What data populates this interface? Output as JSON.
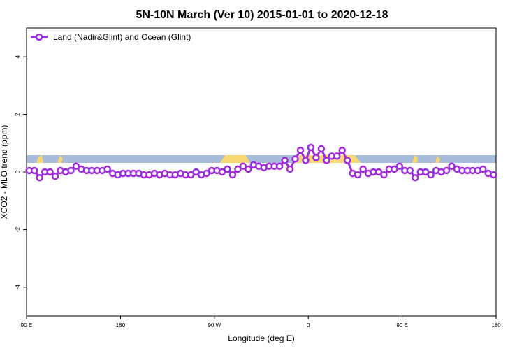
{
  "chart_data": {
    "type": "line",
    "title": "5N-10N March (Ver 10)   2015-01-01 to 2020-12-18",
    "xlabel": "Longitude (deg E)",
    "ylabel": "XCO2 - MLO trend (ppm)",
    "x": [
      92.5,
      97.5,
      102.5,
      107.5,
      112.5,
      117.5,
      122.5,
      127.5,
      132.5,
      137.5,
      142.5,
      147.5,
      152.5,
      157.5,
      162.5,
      167.5,
      172.5,
      177.5,
      182.5,
      187.5,
      192.5,
      197.5,
      202.5,
      207.5,
      212.5,
      217.5,
      222.5,
      227.5,
      232.5,
      237.5,
      242.5,
      247.5,
      252.5,
      257.5,
      262.5,
      267.5,
      272.5,
      277.5,
      282.5,
      287.5,
      292.5,
      297.5,
      302.5,
      307.5,
      312.5,
      317.5,
      322.5,
      327.5,
      332.5,
      337.5,
      342.5,
      347.5,
      352.5,
      357.5,
      362.5,
      367.5,
      372.5,
      377.5,
      382.5,
      387.5,
      392.5,
      397.5,
      402.5,
      407.5,
      412.5,
      417.5,
      422.5,
      427.5,
      432.5,
      437.5,
      442.5,
      447.5,
      452.5,
      457.5,
      462.5,
      467.5,
      472.5,
      477.5,
      482.5,
      487.5,
      492.5,
      497.5,
      502.5,
      507.5,
      512.5,
      517.5,
      522.5,
      527.5,
      532.5,
      537.5
    ],
    "series": [
      {
        "name": "Land (Nadir&Glint) and Ocean (Glint)",
        "color": "#a02be0",
        "values": [
          0.05,
          0.05,
          -0.2,
          0,
          0,
          -0.15,
          0.05,
          0,
          0.05,
          0.2,
          0.1,
          0.05,
          0.05,
          0.05,
          0.05,
          0.1,
          -0.05,
          -0.1,
          -0.05,
          -0.05,
          -0.05,
          -0.05,
          -0.1,
          -0.1,
          -0.05,
          -0.1,
          -0.05,
          -0.1,
          -0.1,
          -0.05,
          -0.1,
          -0.1,
          0,
          -0.1,
          -0.05,
          0.05,
          0.05,
          0,
          0.1,
          -0.1,
          0.1,
          0.2,
          0.1,
          0.25,
          0.2,
          0.15,
          0.2,
          0.2,
          0.2,
          0.4,
          0.1,
          0.45,
          0.75,
          0.4,
          0.85,
          0.5,
          0.8,
          0.4,
          0.55,
          0.55,
          0.75,
          0.4,
          -0.05,
          -0.1,
          0.1,
          -0.05,
          0,
          0,
          -0.1,
          0.1,
          0.1,
          0.2,
          0.05,
          0.05,
          -0.2,
          0,
          0,
          -0.1,
          0.05,
          0,
          0.05,
          0.2,
          0.1,
          0.05,
          0.05,
          0.05,
          0.05,
          0.1,
          -0.05,
          -0.1
        ]
      }
    ],
    "xlim": [
      90,
      540
    ],
    "xticks": [
      {
        "value": 90,
        "label": "90 E"
      },
      180,
      {
        "value": 270,
        "label": "90 W"
      },
      {
        "value": 360,
        "label": "0"
      },
      {
        "value": 450,
        "label": "90 E"
      },
      {
        "value": 540,
        "label": "180"
      }
    ],
    "ylim": [
      -5,
      5
    ],
    "yticks": [
      -4,
      -2,
      0,
      2,
      4
    ],
    "legend": "topleft"
  }
}
